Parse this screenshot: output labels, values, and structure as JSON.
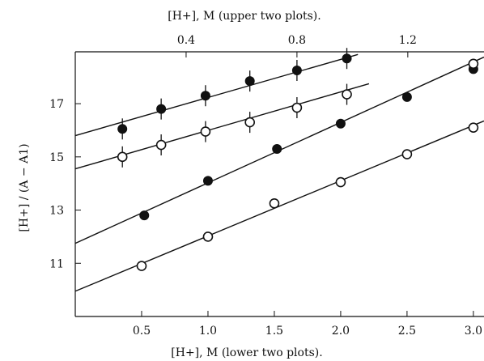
{
  "chart_data": {
    "type": "scatter",
    "title": "",
    "top_axis": {
      "label": "[H+], M (upper two plots).",
      "ticks": [
        0.4,
        0.8,
        1.2
      ],
      "tick_labels": [
        "0.4",
        "0.8",
        "1.2"
      ],
      "range": [
        0.0,
        1.475
      ]
    },
    "bottom_axis": {
      "label": "[H+], M (lower two plots).",
      "ticks": [
        0.5,
        1.0,
        1.5,
        2.0,
        2.5,
        3.0
      ],
      "tick_labels": [
        "0.5",
        "1.0",
        "1.5",
        "2.0",
        "2.5",
        "3.0"
      ],
      "range": [
        0.0,
        3.08
      ]
    },
    "y_axis": {
      "label": "[H+] / (A − A1)",
      "ticks": [
        11,
        13,
        15,
        17
      ],
      "tick_labels": [
        "11",
        "13",
        "15",
        "17"
      ],
      "range": [
        9.0,
        18.95
      ]
    },
    "grid": false,
    "series": [
      {
        "marker": "filled",
        "x_axis": "top",
        "error_bars": true,
        "points": [
          {
            "x": 0.17,
            "y": 16.05
          },
          {
            "x": 0.31,
            "y": 16.8
          },
          {
            "x": 0.47,
            "y": 17.3
          },
          {
            "x": 0.63,
            "y": 17.85
          },
          {
            "x": 0.8,
            "y": 18.25
          },
          {
            "x": 0.98,
            "y": 18.7
          }
        ],
        "fit_line": {
          "x": [
            0.0,
            1.02
          ],
          "y": [
            15.8,
            18.85
          ]
        }
      },
      {
        "marker": "open",
        "x_axis": "top",
        "error_bars": true,
        "points": [
          {
            "x": 0.17,
            "y": 15.0
          },
          {
            "x": 0.31,
            "y": 15.45
          },
          {
            "x": 0.47,
            "y": 15.95
          },
          {
            "x": 0.63,
            "y": 16.3
          },
          {
            "x": 0.8,
            "y": 16.85
          },
          {
            "x": 0.98,
            "y": 17.35
          }
        ],
        "fit_line": {
          "x": [
            0.0,
            1.06
          ],
          "y": [
            14.55,
            17.75
          ]
        }
      },
      {
        "marker": "filled",
        "x_axis": "bottom",
        "error_bars": false,
        "points": [
          {
            "x": 0.52,
            "y": 12.8
          },
          {
            "x": 1.0,
            "y": 14.1
          },
          {
            "x": 1.52,
            "y": 15.3
          },
          {
            "x": 2.0,
            "y": 16.25
          },
          {
            "x": 2.5,
            "y": 17.25
          },
          {
            "x": 3.0,
            "y": 18.3
          }
        ],
        "fit_line": {
          "x": [
            0.0,
            3.08
          ],
          "y": [
            11.75,
            18.75
          ]
        }
      },
      {
        "marker": "open",
        "x_axis": "bottom",
        "error_bars": false,
        "points": [
          {
            "x": 0.5,
            "y": 10.9
          },
          {
            "x": 1.0,
            "y": 12.0
          },
          {
            "x": 1.5,
            "y": 13.25
          },
          {
            "x": 2.0,
            "y": 14.05
          },
          {
            "x": 2.5,
            "y": 15.1
          },
          {
            "x": 3.0,
            "y": 16.1
          },
          {
            "x": 3.0,
            "y": 18.5
          }
        ],
        "fit_line": {
          "x": [
            0.0,
            3.08
          ],
          "y": [
            9.95,
            16.35
          ]
        }
      }
    ]
  }
}
